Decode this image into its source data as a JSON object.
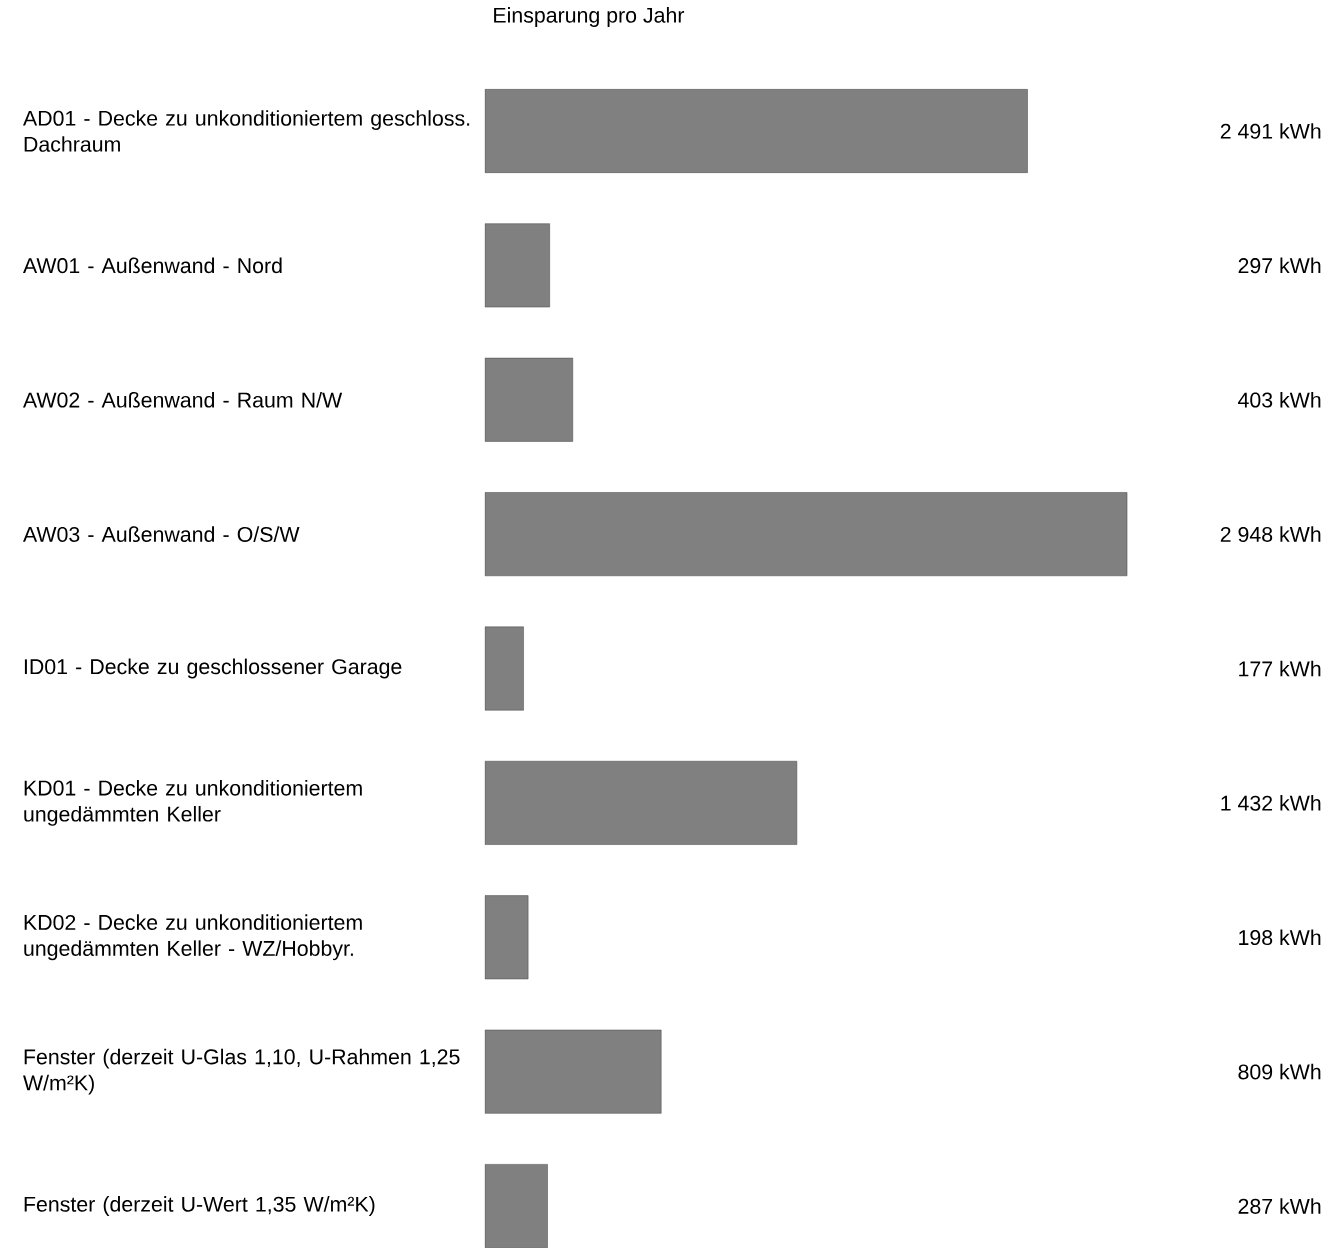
{
  "chart_data": {
    "type": "bar",
    "orientation": "horizontal",
    "title": "Einsparung pro Jahr",
    "categories": [
      "AD01 - Decke zu unkonditioniertem geschloss. Dachraum",
      "AW01 - Außenwand - Nord",
      "AW02 - Außenwand - Raum N/W",
      "AW03 - Außenwand - O/S/W",
      "ID01 - Decke zu geschlossener Garage",
      "KD01 - Decke zu unkonditioniertem ungedämmten Keller",
      "KD02 - Decke zu unkonditioniertem ungedämmten Keller - WZ/Hobbyr.",
      "Fenster (derzeit U-Glas 1,10, U-Rahmen 1,25 W/m²K)",
      "Fenster (derzeit U-Wert 1,35 W/m²K)"
    ],
    "values": [
      2491,
      297,
      403,
      2948,
      177,
      1432,
      198,
      809,
      287
    ],
    "value_labels": [
      "2 491 kWh",
      "297 kWh",
      "403 kWh",
      "2 948 kWh",
      "177 kWh",
      "1 432 kWh",
      "198 kWh",
      "809 kWh",
      "287 kWh"
    ],
    "color": "#808080"
  }
}
